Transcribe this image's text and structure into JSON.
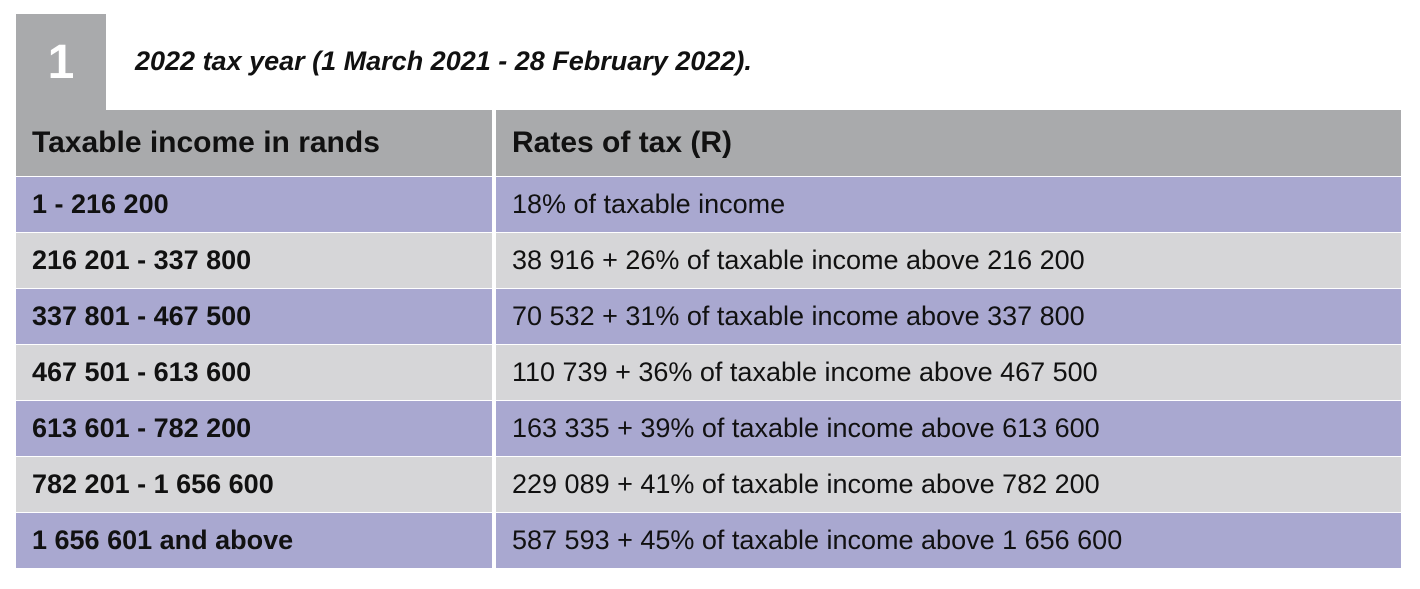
{
  "section": {
    "number": "1",
    "caption": "2022 tax year (1 March 2021 - 28 February 2022)."
  },
  "table": {
    "headers": [
      "Taxable income in rands",
      "Rates of tax (R)"
    ],
    "rows": [
      {
        "band": "1 - 216 200",
        "rate": "18% of taxable income"
      },
      {
        "band": "216 201 - 337 800",
        "rate": "38 916 + 26% of taxable income above 216 200"
      },
      {
        "band": "337 801 - 467 500",
        "rate": "70 532 + 31% of taxable income above 337 800"
      },
      {
        "band": "467 501 - 613 600",
        "rate": "110 739 + 36% of taxable income above 467 500"
      },
      {
        "band": "613 601 - 782 200",
        "rate": "163 335 + 39% of taxable income above 613 600"
      },
      {
        "band": "782 201 - 1 656 600",
        "rate": "229 089  + 41% of taxable income above 782 200"
      },
      {
        "band": "1 656 601 and above",
        "rate": "587 593 + 45% of taxable income above 1 656 600"
      }
    ]
  },
  "colors": {
    "header_grey": "#a9aaac",
    "row_lilac": "#a9a8d0",
    "row_grey": "#d6d6d8"
  }
}
